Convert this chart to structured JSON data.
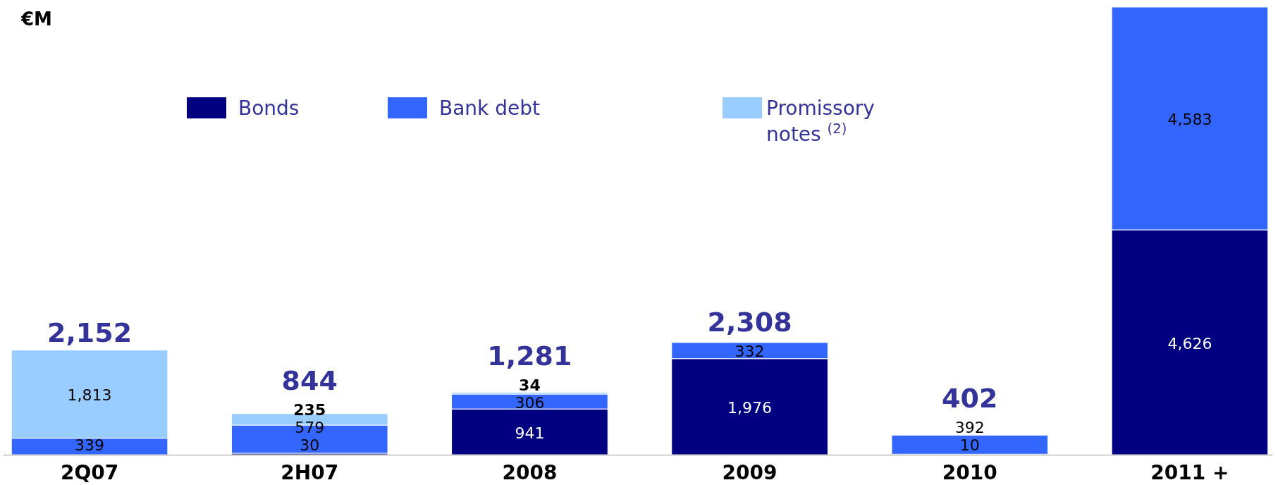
{
  "chart_data": {
    "type": "bar",
    "stacked": true,
    "ylabel": "€M",
    "legend": "top",
    "categories": [
      "2Q07",
      "2H07",
      "2008",
      "2009",
      "2010",
      "2011 +"
    ],
    "series": [
      {
        "name": "Bonds",
        "color": "#000080",
        "values": [
          null,
          30,
          941,
          1976,
          10,
          4626
        ],
        "value_labels": [
          null,
          "30",
          "941",
          "1,976",
          "10",
          "4,626"
        ]
      },
      {
        "name": "Bank debt",
        "color": "#3366ff",
        "values": [
          339,
          579,
          306,
          332,
          392,
          4583
        ],
        "value_labels": [
          "339",
          "579",
          "306",
          "332",
          "392",
          "4,583"
        ]
      },
      {
        "name": "Promissory notes $^{(2)}$",
        "color": "#99ccff",
        "values": [
          1813,
          235,
          34,
          null,
          null,
          null
        ],
        "value_labels": [
          "1,813",
          "235",
          "34",
          null,
          null,
          null
        ]
      }
    ],
    "totals": [
      "2,152",
      "844",
      "1,281",
      "2,308",
      "402",
      null
    ]
  }
}
